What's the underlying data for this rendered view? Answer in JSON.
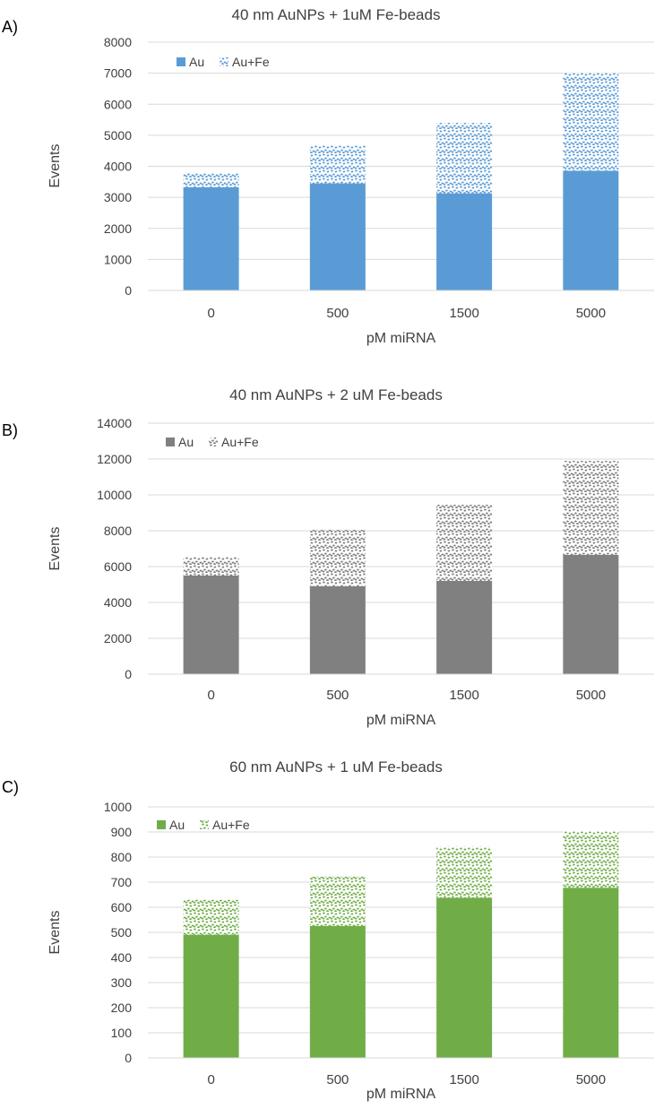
{
  "chart_data": [
    {
      "type": "bar",
      "stacked": true,
      "panel_label": "A)",
      "title": "40 nm AuNPs + 1uM Fe-beads",
      "xlabel": "pM miRNA",
      "ylabel": "Events",
      "categories": [
        "0",
        "500",
        "1500",
        "5000"
      ],
      "ylim": [
        0,
        8000
      ],
      "yticks": [
        0,
        1000,
        2000,
        3000,
        4000,
        5000,
        6000,
        7000,
        8000
      ],
      "legend": "top-left",
      "color": "#5b9bd5",
      "series": [
        {
          "name": "Au",
          "pattern": "solid",
          "values": [
            3330,
            3450,
            3130,
            3860
          ]
        },
        {
          "name": "Au+Fe",
          "pattern": "dots",
          "values": [
            470,
            1230,
            2270,
            3140
          ]
        }
      ]
    },
    {
      "type": "bar",
      "stacked": true,
      "panel_label": "B)",
      "title": "40 nm AuNPs + 2 uM Fe-beads",
      "xlabel": "pM miRNA",
      "ylabel": "Events",
      "categories": [
        "0",
        "500",
        "1500",
        "5000"
      ],
      "ylim": [
        0,
        14000
      ],
      "yticks": [
        0,
        2000,
        4000,
        6000,
        8000,
        10000,
        12000,
        14000
      ],
      "legend": "top-left",
      "color": "#808080",
      "series": [
        {
          "name": "Au",
          "pattern": "solid",
          "values": [
            5500,
            4900,
            5200,
            6650
          ]
        },
        {
          "name": "Au+Fe",
          "pattern": "dots",
          "values": [
            1050,
            3150,
            4250,
            5250
          ]
        }
      ]
    },
    {
      "type": "bar",
      "stacked": true,
      "panel_label": "C)",
      "title": "60 nm AuNPs + 1 uM Fe-beads",
      "xlabel": "pM miRNA",
      "ylabel": "Events",
      "categories": [
        "0",
        "500",
        "1500",
        "5000"
      ],
      "ylim": [
        0,
        1000
      ],
      "yticks": [
        0,
        100,
        200,
        300,
        400,
        500,
        600,
        700,
        800,
        900,
        1000
      ],
      "legend": "top-left",
      "color": "#70ad47",
      "series": [
        {
          "name": "Au",
          "pattern": "solid",
          "values": [
            490,
            525,
            638,
            678
          ]
        },
        {
          "name": "Au+Fe",
          "pattern": "dots",
          "values": [
            140,
            197,
            202,
            225
          ]
        }
      ]
    }
  ]
}
